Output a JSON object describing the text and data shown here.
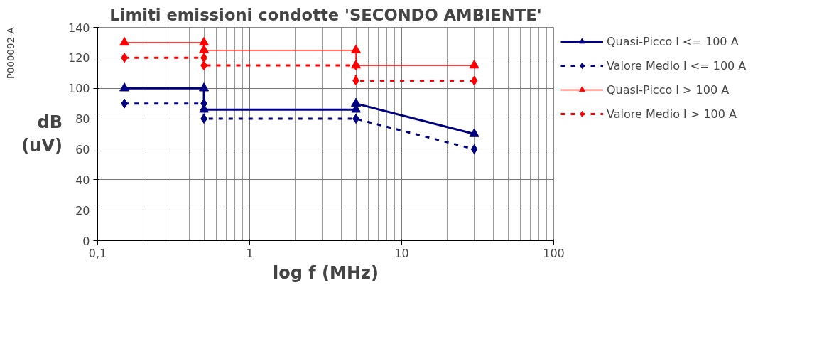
{
  "chart_data": {
    "type": "line",
    "title": "Limiti emissioni condotte 'SECONDO AMBIENTE'",
    "xlabel": "log f (MHz)",
    "ylabel": "dB\n(uV)",
    "annotations": [
      "P000092-A"
    ],
    "log": "x",
    "xlim": [
      0.1,
      100
    ],
    "xticks": [
      {
        "value": 0.1,
        "label": "0,1"
      },
      1,
      10,
      100
    ],
    "ylim": [
      0,
      140
    ],
    "yticks": [
      0,
      20,
      40,
      60,
      80,
      100,
      120,
      140
    ],
    "grid": true,
    "legend": "right",
    "series": [
      {
        "name": "Quasi-Picco I <= 100 A",
        "color": "#000080",
        "marker": "triangle",
        "line_style": "solid",
        "x": [
          0.15,
          0.5,
          0.5,
          5,
          5,
          30
        ],
        "values": [
          100,
          100,
          86,
          86,
          90,
          70
        ]
      },
      {
        "name": "Valore Medio I <= 100 A",
        "color": "#000080",
        "marker": "diamond",
        "line_style": "dashed",
        "x": [
          0.15,
          0.5,
          0.5,
          5,
          30
        ],
        "values": [
          90,
          90,
          80,
          80,
          60
        ]
      },
      {
        "name": "Quasi-Picco I > 100 A",
        "color": "#ff0000",
        "marker": "triangle",
        "line_style": "solid",
        "x": [
          0.15,
          0.5,
          0.5,
          5,
          5,
          30
        ],
        "values": [
          130,
          130,
          125,
          125,
          115,
          115
        ]
      },
      {
        "name": "Valore Medio I > 100 A",
        "color": "#ff0000",
        "marker": "diamond",
        "line_style": "dashed",
        "x": [
          0.15,
          0.5,
          0.5,
          5,
          5,
          30
        ],
        "values": [
          120,
          120,
          115,
          115,
          105,
          105
        ]
      }
    ]
  }
}
